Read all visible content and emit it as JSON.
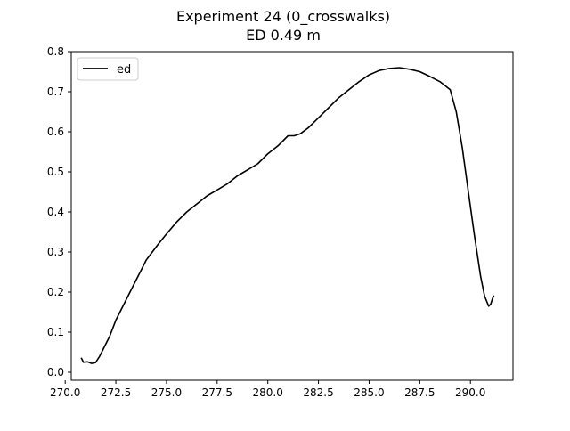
{
  "chart_data": {
    "type": "line",
    "title": "Experiment 24 (0_crosswalks)",
    "subtitle": "ED 0.49 m",
    "xlabel": "",
    "ylabel": "",
    "xlim": [
      270.3,
      292.1
    ],
    "ylim": [
      -0.02,
      0.8
    ],
    "x_ticks": [
      270.0,
      272.5,
      275.0,
      277.5,
      280.0,
      282.5,
      285.0,
      287.5,
      290.0
    ],
    "x_tick_labels": [
      "270.0",
      "272.5",
      "275.0",
      "277.5",
      "280.0",
      "282.5",
      "285.0",
      "287.5",
      "290.0"
    ],
    "y_ticks": [
      0.0,
      0.1,
      0.2,
      0.3,
      0.4,
      0.5,
      0.6,
      0.7,
      0.8
    ],
    "y_tick_labels": [
      "0.0",
      "0.1",
      "0.2",
      "0.3",
      "0.4",
      "0.5",
      "0.6",
      "0.7",
      "0.8"
    ],
    "grid": false,
    "legend_position": "upper-left",
    "series": [
      {
        "name": "ed",
        "color": "#000000",
        "x": [
          270.8,
          270.9,
          271.1,
          271.3,
          271.5,
          271.7,
          271.9,
          272.2,
          272.5,
          272.8,
          273.1,
          273.4,
          273.7,
          274.0,
          274.3,
          274.6,
          275.0,
          275.5,
          276.0,
          276.5,
          277.0,
          277.5,
          278.0,
          278.5,
          279.0,
          279.5,
          280.0,
          280.5,
          280.8,
          281.0,
          281.3,
          281.6,
          282.0,
          282.5,
          283.0,
          283.5,
          284.0,
          284.5,
          285.0,
          285.5,
          286.0,
          286.5,
          287.0,
          287.5,
          288.0,
          288.5,
          289.0,
          289.3,
          289.6,
          289.9,
          290.2,
          290.5,
          290.7,
          290.9,
          291.0,
          291.1,
          291.15
        ],
        "y": [
          0.035,
          0.025,
          0.026,
          0.022,
          0.024,
          0.04,
          0.06,
          0.09,
          0.13,
          0.16,
          0.19,
          0.22,
          0.25,
          0.28,
          0.3,
          0.32,
          0.345,
          0.375,
          0.4,
          0.42,
          0.44,
          0.455,
          0.47,
          0.49,
          0.505,
          0.52,
          0.545,
          0.565,
          0.58,
          0.59,
          0.59,
          0.595,
          0.61,
          0.635,
          0.66,
          0.685,
          0.705,
          0.725,
          0.742,
          0.753,
          0.758,
          0.76,
          0.756,
          0.75,
          0.738,
          0.725,
          0.705,
          0.65,
          0.56,
          0.45,
          0.34,
          0.24,
          0.19,
          0.165,
          0.17,
          0.185,
          0.19
        ]
      }
    ]
  }
}
